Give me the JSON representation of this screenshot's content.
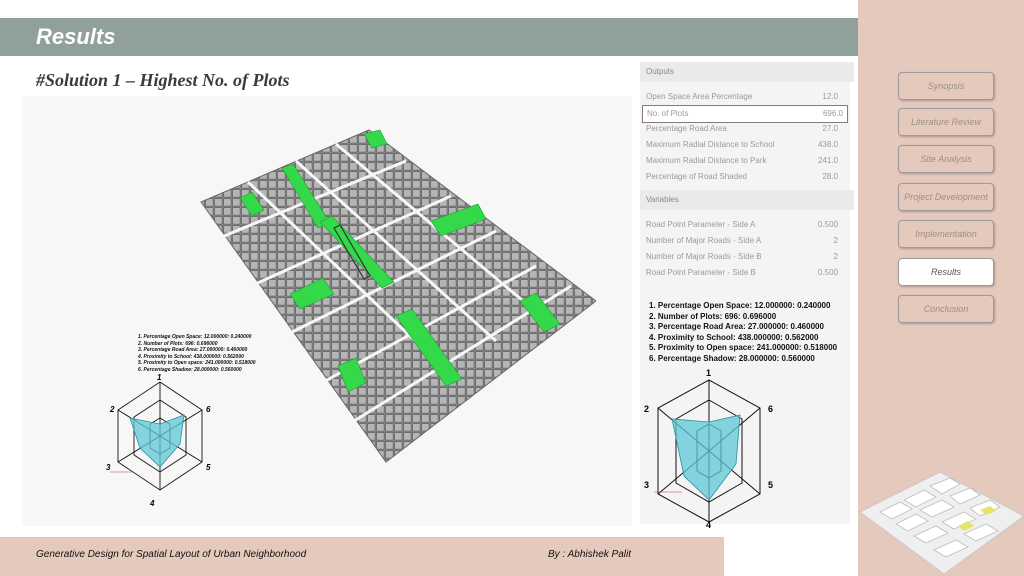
{
  "header": {
    "title": "Results"
  },
  "subtitle": "#Solution 1 – Highest No. of Plots",
  "nav": {
    "items": [
      {
        "label": "Synopsis"
      },
      {
        "label": "Literature Review"
      },
      {
        "label": "Site Analysis"
      },
      {
        "label": "Project Development"
      },
      {
        "label": "Implementation"
      },
      {
        "label": "Results"
      },
      {
        "label": "Conclusion"
      }
    ]
  },
  "outputs": {
    "heading": "Outputs",
    "rows": [
      {
        "label": "Open Space Area Percentage",
        "value": "12.0"
      },
      {
        "label": "No. of Plots",
        "value": "696.0"
      },
      {
        "label": "Percentage Road Area",
        "value": "27.0"
      },
      {
        "label": "Maximum Radial Distance to School",
        "value": "438.0"
      },
      {
        "label": "Maximum Radial Distance to Park",
        "value": "241.0"
      },
      {
        "label": "Percentage of Road Shaded",
        "value": "28.0"
      }
    ]
  },
  "variables": {
    "heading": "Variables",
    "rows": [
      {
        "label": "Road Point Parameter - Side A",
        "value": "0.500"
      },
      {
        "label": "Number of Major Roads - Side A",
        "value": "2"
      },
      {
        "label": "Number of Major Roads - Side B",
        "value": "2"
      },
      {
        "label": "Road Point Parameter - Side B",
        "value": "0.500"
      }
    ]
  },
  "legend_big": [
    "1. Percentage Open Space: 12.000000: 0.240000",
    "2. Number of Plots: 696: 0.696000",
    "3. Percentage Road Area: 27.000000: 0.460000",
    "4. Proximity to School: 438.000000: 0.562000",
    "5. Proximity to Open space: 241.000000: 0.518000",
    "6. Percentage Shadow: 28.000000: 0.560000"
  ],
  "legend_small": [
    "1. Percentage Open Space: 12.000000: 0.240000",
    "2. Number of Plots: 696: 0.696000",
    "3. Percentage Road Area: 27.000000: 0.460000",
    "4. Proximity to School: 438.000000: 0.562000",
    "5. Proximity to Open space: 241.000000: 0.518000",
    "6. Percentage Shadow: 28.000000: 0.560000"
  ],
  "radar_axes": [
    "1",
    "2",
    "3",
    "4",
    "5",
    "6"
  ],
  "footer": {
    "left": "Generative Design for Spatial Layout of Urban Neighborhood",
    "right": "By : Abhishek Palit"
  },
  "colors": {
    "header": "#8fa19a",
    "panel": "#e6c9bd",
    "green": "#34d94a",
    "radar_fill": "#5cc8d6"
  }
}
